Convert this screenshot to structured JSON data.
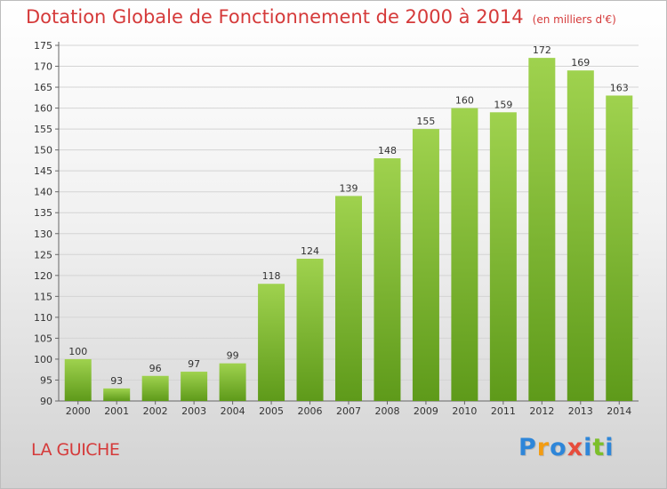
{
  "title": "Dotation Globale de Fonctionnement de 2000 à 2014",
  "unit_note": "(en milliers d'€)",
  "commune": "LA GUICHE",
  "brand": {
    "text": "Proxiti",
    "letters": [
      {
        "ch": "P",
        "color": "#2e86d9"
      },
      {
        "ch": "r",
        "color": "#f39c12"
      },
      {
        "ch": "o",
        "color": "#2e86d9"
      },
      {
        "ch": "x",
        "color": "#e74c3c"
      },
      {
        "ch": "i",
        "color": "#2e86d9"
      },
      {
        "ch": "t",
        "color": "#7cbf2a"
      },
      {
        "ch": "i",
        "color": "#2e86d9"
      }
    ]
  },
  "colors": {
    "bar_top": "#9fd24e",
    "bar_bottom": "#5e9a1a",
    "title": "#d53a3a",
    "axis_text": "#333333",
    "grid": "#d4d4d4"
  },
  "chart_data": {
    "type": "bar",
    "title": "Dotation Globale de Fonctionnement de 2000 à 2014",
    "categories": [
      "2000",
      "2001",
      "2002",
      "2003",
      "2004",
      "2005",
      "2006",
      "2007",
      "2008",
      "2009",
      "2010",
      "2011",
      "2012",
      "2013",
      "2014"
    ],
    "values": [
      100,
      93,
      96,
      97,
      99,
      118,
      124,
      139,
      148,
      155,
      160,
      159,
      172,
      169,
      163
    ],
    "ylim": [
      90,
      175
    ],
    "ytick_step": 5,
    "grid": true,
    "xlabel": "",
    "ylabel": ""
  }
}
